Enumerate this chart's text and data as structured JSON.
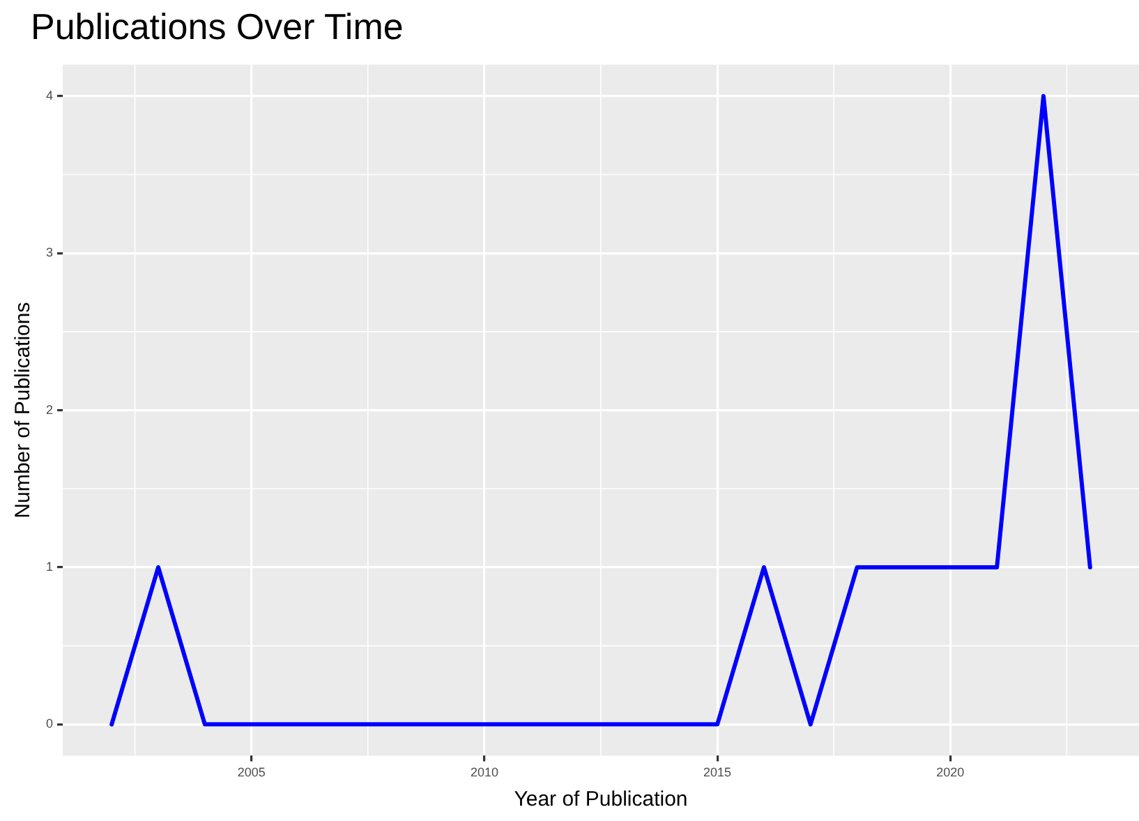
{
  "chart_data": {
    "type": "line",
    "title": "Publications Over Time",
    "xlabel": "Year of Publication",
    "ylabel": "Number of Publications",
    "x": [
      2002,
      2003,
      2004,
      2005,
      2006,
      2007,
      2008,
      2009,
      2010,
      2011,
      2012,
      2013,
      2014,
      2015,
      2016,
      2017,
      2018,
      2019,
      2020,
      2021,
      2022,
      2023
    ],
    "series": [
      {
        "color": "#0000ff",
        "values": [
          0,
          1,
          0,
          0,
          0,
          0,
          0,
          0,
          0,
          0,
          0,
          0,
          0,
          0,
          1,
          0,
          1,
          1,
          1,
          1,
          4,
          1
        ]
      }
    ],
    "xlim": [
      2000.95,
      2024.05
    ],
    "xticks": [
      2005,
      2010,
      2015,
      2020
    ],
    "ylim": [
      -0.2,
      4.2
    ],
    "yticks": [
      0,
      1,
      2,
      3,
      4
    ],
    "grid": true,
    "marker": "none",
    "line_style": "solid"
  }
}
